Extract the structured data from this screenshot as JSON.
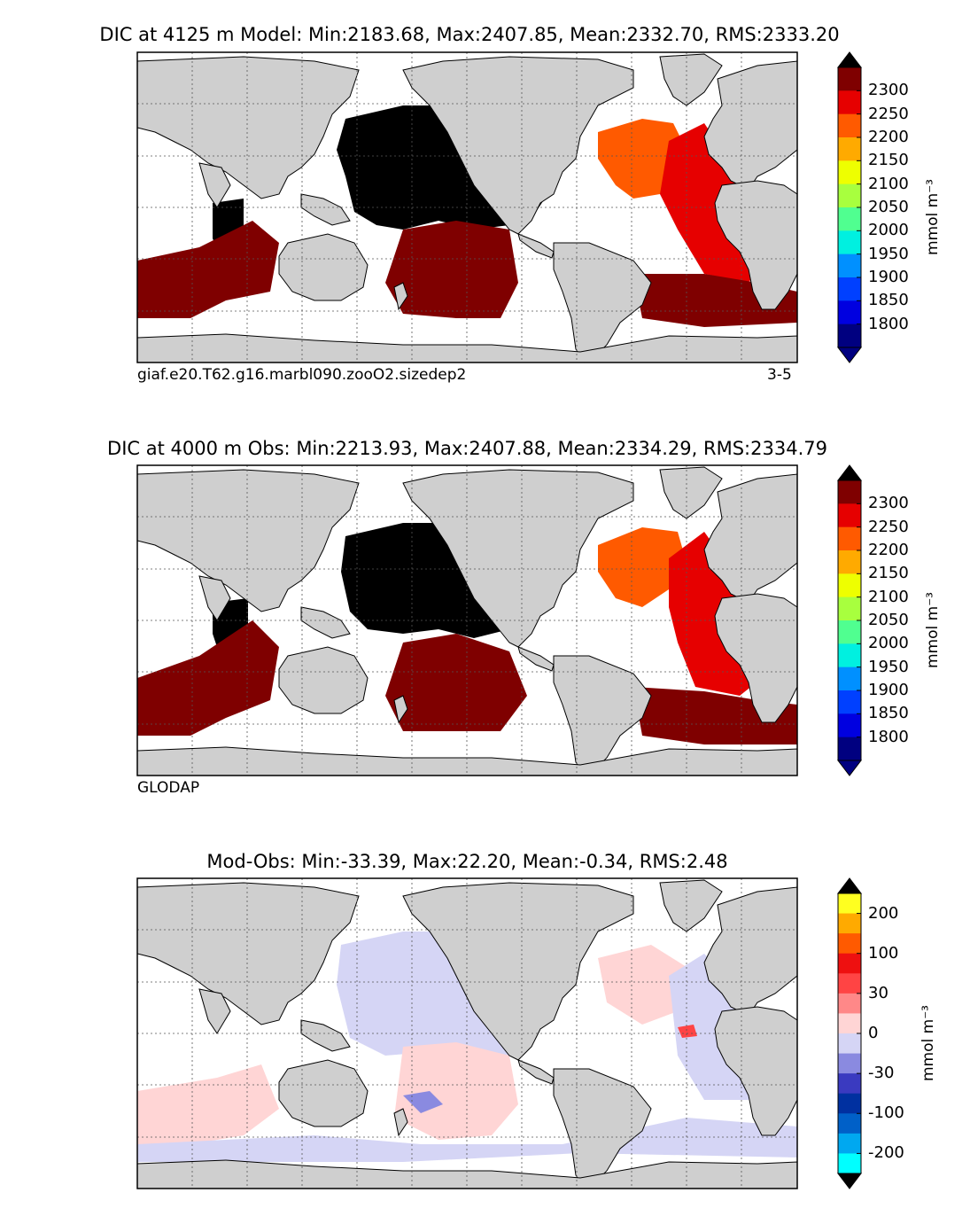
{
  "panels": [
    {
      "title": "DIC at 4125 m Model: Min:2183.68, Max:2407.85, Mean:2332.70, RMS:2333.20",
      "caption_left": "giaf.e20.T62.g16.marbl090.zooO2.sizedep2",
      "caption_right": "3-5",
      "colorbar": {
        "unit": "mmol m⁻³",
        "tick_labels": [
          "2300",
          "2250",
          "2200",
          "2150",
          "2100",
          "2050",
          "2000",
          "1950",
          "1900",
          "1850",
          "1800"
        ],
        "colors": [
          "#7f0000",
          "#e60000",
          "#ff5a00",
          "#ffaa00",
          "#eeff00",
          "#a8ff3e",
          "#50ff90",
          "#00f0e0",
          "#0090ff",
          "#0040ff",
          "#0000e0",
          "#000080"
        ],
        "over_color": "#000000",
        "under_color": "#000080"
      }
    },
    {
      "title": "DIC at 4000 m Obs: Min:2213.93, Max:2407.88, Mean:2334.29, RMS:2334.79",
      "caption_left": "GLODAP",
      "caption_right": "",
      "colorbar": {
        "unit": "mmol m⁻³",
        "tick_labels": [
          "2300",
          "2250",
          "2200",
          "2150",
          "2100",
          "2050",
          "2000",
          "1950",
          "1900",
          "1850",
          "1800"
        ],
        "colors": [
          "#7f0000",
          "#e60000",
          "#ff5a00",
          "#ffaa00",
          "#eeff00",
          "#a8ff3e",
          "#50ff90",
          "#00f0e0",
          "#0090ff",
          "#0040ff",
          "#0000e0",
          "#000080"
        ],
        "over_color": "#000000",
        "under_color": "#000080"
      }
    },
    {
      "title": "Mod-Obs: Min:-33.39, Max:22.20, Mean:-0.34, RMS:2.48",
      "caption_left": "",
      "caption_right": "",
      "colorbar": {
        "unit": "mmol m⁻³",
        "tick_labels": [
          "200",
          "100",
          "30",
          "0",
          "-30",
          "-100",
          "-200"
        ],
        "colors": [
          "#ffff20",
          "#ffaa00",
          "#ff5a00",
          "#ee1010",
          "#ff4444",
          "#ff8888",
          "#ffd5d5",
          "#d5d5f5",
          "#8a8ae0",
          "#3a3ac0",
          "#0030a0",
          "#0060c8",
          "#00a8f0",
          "#00ffff"
        ],
        "over_color": "#000000",
        "under_color": "#000000"
      }
    }
  ],
  "colors": {
    "land": "#cfcfcf",
    "ocean_no_data": "#ffffff",
    "high_dic": "#000000",
    "grid": "#555555"
  }
}
